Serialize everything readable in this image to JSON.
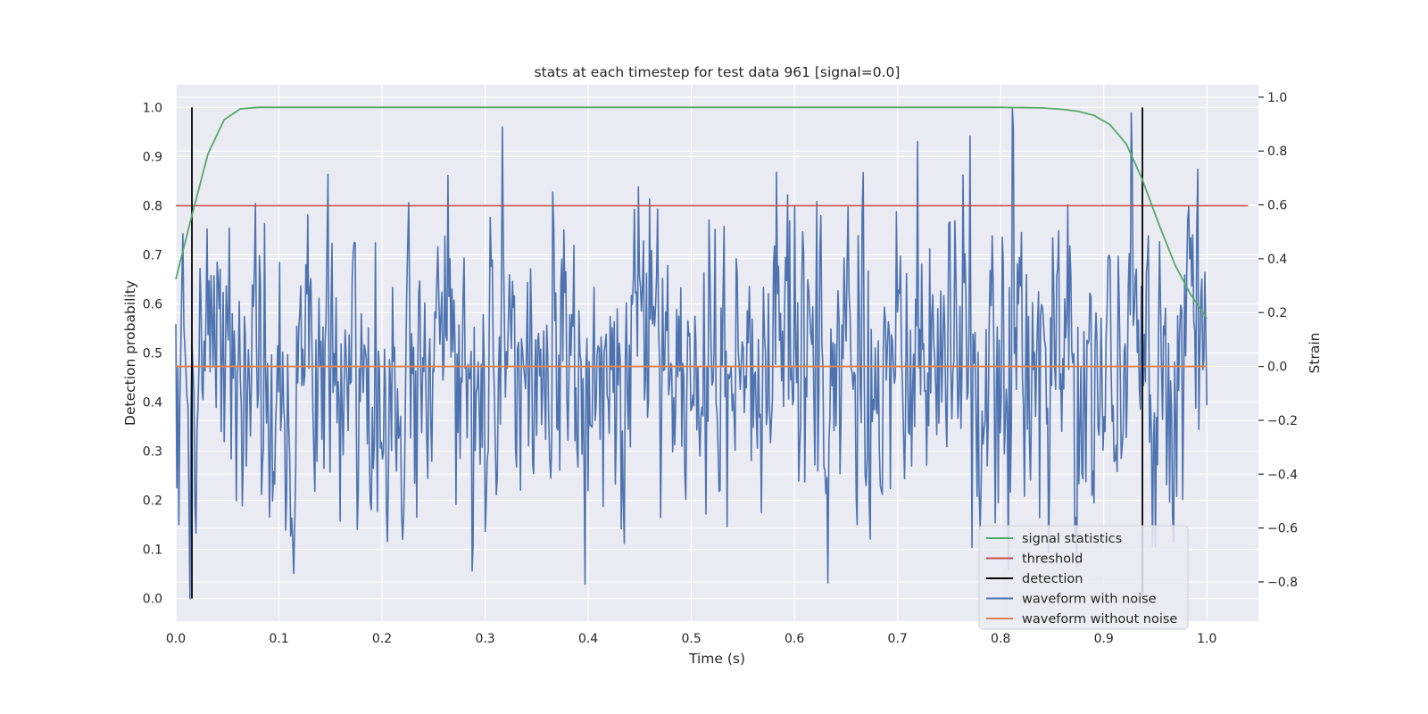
{
  "chart_data": {
    "type": "line",
    "title": "stats at each timestep for test data 961 [signal=0.0]",
    "xlabel": "Time (s)",
    "ylabel": "Detection probability",
    "ylabel_right": "Strain",
    "xlim": [
      0.0,
      1.05
    ],
    "ylim": [
      -0.046,
      1.046
    ],
    "ylim_right": [
      -0.946,
      1.046
    ],
    "x_ticks": [
      "0.0",
      "0.1",
      "0.2",
      "0.3",
      "0.4",
      "0.5",
      "0.6",
      "0.7",
      "0.8",
      "0.9",
      "1.0"
    ],
    "y_ticks": [
      "0.0",
      "0.1",
      "0.2",
      "0.3",
      "0.4",
      "0.5",
      "0.6",
      "0.7",
      "0.8",
      "0.9",
      "1.0"
    ],
    "y_ticks_right": [
      "−0.8",
      "−0.6",
      "−0.4",
      "−0.2",
      "0.0",
      "0.2",
      "0.4",
      "0.6",
      "0.8",
      "1.0"
    ],
    "grid": true,
    "legend_position": "lower-right",
    "series": [
      {
        "name": "signal statistics",
        "axis": "left",
        "color": "#55a868",
        "points": [
          [
            0.0,
            0.65
          ],
          [
            0.0156,
            0.78
          ],
          [
            0.0312,
            0.905
          ],
          [
            0.0469,
            0.975
          ],
          [
            0.0625,
            0.997
          ],
          [
            0.08,
            1.0
          ],
          [
            0.2,
            1.0
          ],
          [
            0.4,
            1.0
          ],
          [
            0.6,
            1.0
          ],
          [
            0.8,
            1.0
          ],
          [
            0.84,
            0.999
          ],
          [
            0.86,
            0.996
          ],
          [
            0.875,
            0.992
          ],
          [
            0.89,
            0.984
          ],
          [
            0.906,
            0.965
          ],
          [
            0.922,
            0.925
          ],
          [
            0.937,
            0.855
          ],
          [
            0.953,
            0.765
          ],
          [
            0.969,
            0.68
          ],
          [
            0.984,
            0.62
          ],
          [
            1.0,
            0.57
          ]
        ]
      },
      {
        "name": "threshold",
        "axis": "left",
        "color": "#c44e52",
        "value": 0.8,
        "x_range": [
          0.0,
          1.04
        ]
      },
      {
        "name": "detection",
        "axis": "left",
        "color": "#000000",
        "x": [
          0.0156,
          0.9375
        ],
        "y_range": [
          0.0,
          1.0
        ]
      },
      {
        "name": "waveform with noise",
        "axis": "right",
        "color": "#4c72b0",
        "sample_count": 1024,
        "x_range": [
          0.0,
          1.0
        ],
        "amplitude_std": 0.26,
        "min": -0.85,
        "max": 1.0
      },
      {
        "name": "waveform without noise",
        "axis": "right",
        "color": "#dd8452",
        "value": 0.0,
        "x_range": [
          0.0,
          1.0
        ]
      }
    ]
  }
}
